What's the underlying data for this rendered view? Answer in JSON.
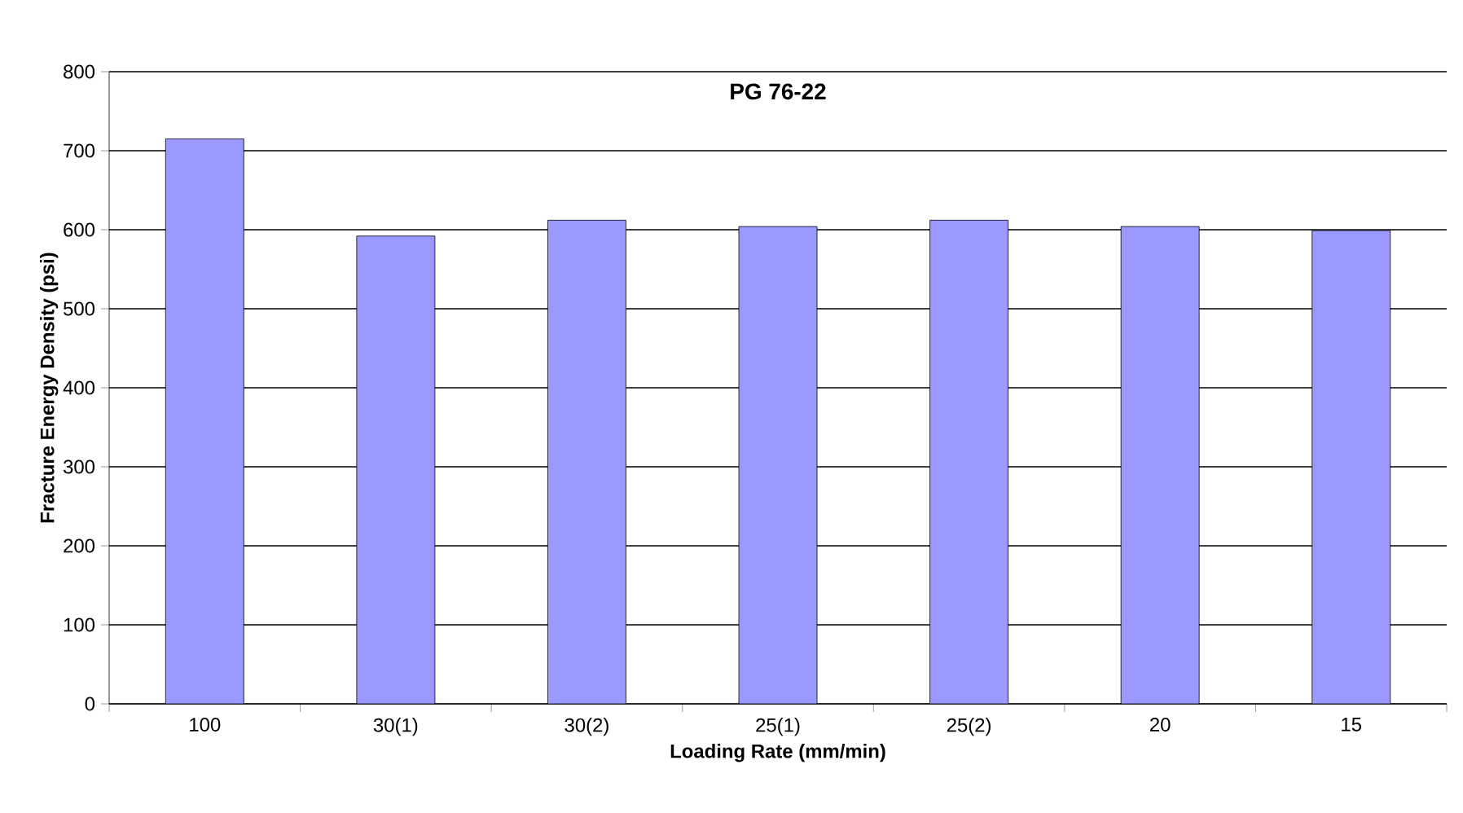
{
  "chart_data": {
    "type": "bar",
    "title": "PG 76-22",
    "xlabel": "Loading Rate (mm/min)",
    "ylabel": "Fracture Energy Density (psi)",
    "categories": [
      "100",
      "30(1)",
      "30(2)",
      "25(1)",
      "25(2)",
      "20",
      "15"
    ],
    "values": [
      715,
      592,
      612,
      604,
      612,
      604,
      599
    ],
    "color": "#9999ff",
    "ylim": [
      0,
      800
    ],
    "yticks": [
      0,
      100,
      200,
      300,
      400,
      500,
      600,
      700,
      800
    ],
    "grid": "y"
  }
}
